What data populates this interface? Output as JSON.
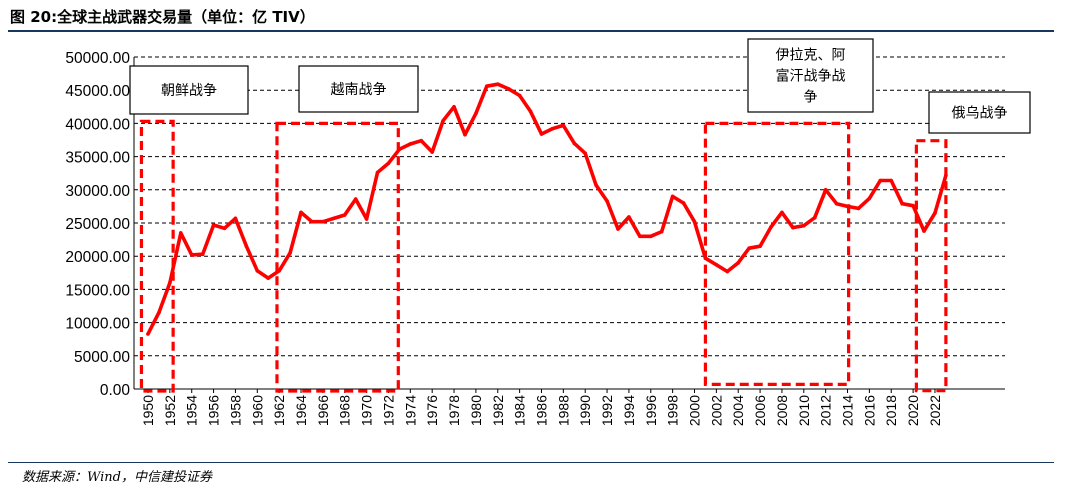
{
  "header": {
    "title": "图 20:全球主战武器交易量（单位：亿 TIV）"
  },
  "footer": {
    "source": "数据来源：Wind，中信建投证券"
  },
  "colors": {
    "line": "#ff0000",
    "box": "#ff0000",
    "rule": "#17375e",
    "grid": "#000000"
  },
  "chart_data": {
    "type": "line",
    "title": "图 20:全球主战武器交易量（单位：亿 TIV）",
    "xlabel": "",
    "ylabel": "",
    "ylim": [
      0,
      50000
    ],
    "y_ticks": [
      "0.00",
      "5000.00",
      "10000.00",
      "15000.00",
      "20000.00",
      "25000.00",
      "30000.00",
      "35000.00",
      "40000.00",
      "45000.00",
      "50000.00"
    ],
    "x_ticks": [
      "1950",
      "1952",
      "1954",
      "1956",
      "1958",
      "1960",
      "1962",
      "1964",
      "1966",
      "1968",
      "1970",
      "1972",
      "1974",
      "1976",
      "1978",
      "1980",
      "1982",
      "1984",
      "1986",
      "1988",
      "1990",
      "1992",
      "1994",
      "1996",
      "1998",
      "2000",
      "2002",
      "2004",
      "2006",
      "2008",
      "2010",
      "2012",
      "2014",
      "2016",
      "2018",
      "2020",
      "2022"
    ],
    "grid": "horizontal dashed",
    "series": [
      {
        "x": [
          1950,
          1951,
          1952,
          1953,
          1954,
          1955,
          1956,
          1957,
          1958,
          1959,
          1960,
          1961,
          1962,
          1963,
          1964,
          1965,
          1966,
          1967,
          1968,
          1969,
          1970,
          1971,
          1972,
          1973,
          1974,
          1975,
          1976,
          1977,
          1978,
          1979,
          1980,
          1981,
          1982,
          1983,
          1984,
          1985,
          1986,
          1987,
          1988,
          1989,
          1990,
          1991,
          1992,
          1993,
          1994,
          1995,
          1996,
          1997,
          1998,
          1999,
          2000,
          2001,
          2002,
          2003,
          2004,
          2005,
          2006,
          2007,
          2008,
          2009,
          2010,
          2011,
          2012,
          2013,
          2014,
          2015,
          2016,
          2017,
          2018,
          2019,
          2020,
          2021,
          2022,
          2023
        ],
        "y": [
          8300,
          11500,
          16000,
          23500,
          20200,
          20300,
          24700,
          24200,
          25700,
          21500,
          17800,
          16700,
          17800,
          20500,
          26600,
          25200,
          25200,
          25700,
          26200,
          28600,
          25600,
          32600,
          34000,
          36100,
          36900,
          37400,
          35700,
          40400,
          42500,
          38300,
          41500,
          45600,
          45900,
          45200,
          44200,
          41800,
          38400,
          39200,
          39700,
          37000,
          35500,
          30700,
          28300,
          24100,
          25900,
          23000,
          23000,
          23700,
          29000,
          28000,
          25200,
          19700,
          18700,
          17700,
          19000,
          21200,
          21500,
          24400,
          26600,
          24300,
          24600,
          25800,
          30000,
          27900,
          27500,
          27200,
          28700,
          31400,
          31400,
          27900,
          27600,
          23800,
          26500,
          32200
        ]
      }
    ],
    "annotations": [
      {
        "label": "朝鲜战争",
        "lines": [
          "朝鲜战争"
        ]
      },
      {
        "label": "越南战争",
        "lines": [
          "越南战争"
        ]
      },
      {
        "label": "伊拉克、阿富汗战争战争",
        "lines": [
          "伊拉克、阿",
          "富汗战争战",
          "争"
        ]
      },
      {
        "label": "俄乌战争",
        "lines": [
          "俄乌战争"
        ]
      }
    ]
  }
}
